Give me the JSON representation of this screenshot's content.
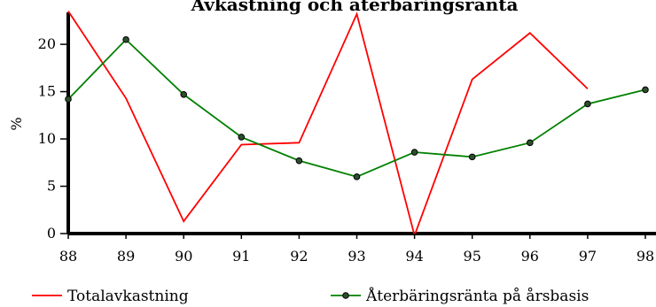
{
  "chart_data": {
    "type": "line",
    "title": "Avkastning och återbäringsränta",
    "xlabel": "",
    "ylabel": "%",
    "categories": [
      "88",
      "89",
      "90",
      "91",
      "92",
      "93",
      "94",
      "95",
      "96",
      "97",
      "98"
    ],
    "xlim": [
      88,
      98
    ],
    "ylim": [
      0,
      23
    ],
    "yticks": [
      0,
      5,
      10,
      15,
      20
    ],
    "grid": false,
    "legend_position": "bottom",
    "series": [
      {
        "name": "Totalavkastning",
        "color": "#ff0000",
        "markers": false,
        "values": [
          23.5,
          14.3,
          1.3,
          9.4,
          9.6,
          23.2,
          -0.2,
          16.3,
          21.2,
          15.3,
          null
        ]
      },
      {
        "name": "Återbäringsränta på årsbasis",
        "color": "#008000",
        "markers": true,
        "values": [
          14.2,
          20.5,
          14.7,
          10.2,
          7.7,
          6.0,
          8.6,
          8.1,
          9.6,
          13.7,
          15.2
        ]
      }
    ]
  }
}
